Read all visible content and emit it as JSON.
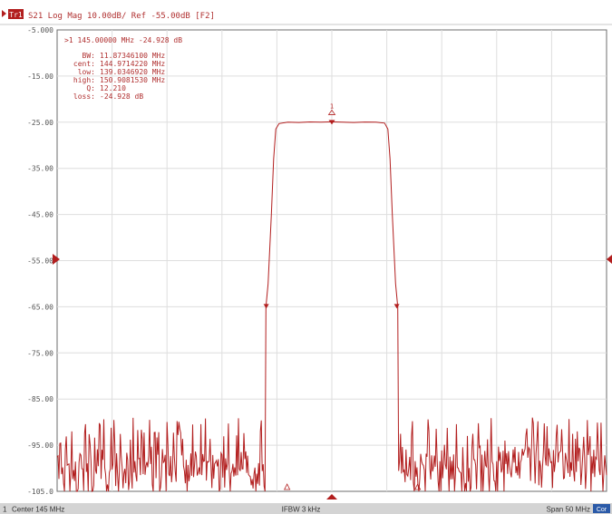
{
  "header": {
    "trace_badge": "Tr1",
    "trace_label": "S21 Log Mag 10.00dB/ Ref -55.00dB [F2]"
  },
  "marker_readout": {
    "marker": ">1  145.00000 MHz -24.928 dB",
    "bw_key": "BW:",
    "bw_value": "11.87346100 MHz",
    "cent_key": "cent:",
    "cent_value": "144.9714220 MHz",
    "low_key": "low:",
    "low_value": "139.0346920 MHz",
    "high_key": "high:",
    "high_value": "150.9081530 MHz",
    "q_key": "Q:",
    "q_value": "12.210",
    "loss_key": "loss:",
    "loss_value": "-24.928 dB"
  },
  "marker_flag": "1",
  "status_bar": {
    "channel": "1",
    "center": "Center 145 MHz",
    "ifbw": "IFBW 3 kHz",
    "span": "Span 50 MHz",
    "cor_badge": "Cor"
  },
  "colors": {
    "trace": "#b21e1e",
    "text": "#b03030",
    "axis_text": "#555555",
    "grid": "#dedede",
    "frame": "#6e6e6e",
    "status_bg": "#d4d4d4",
    "badge_bg": "#2b5aa8"
  },
  "chart_data": {
    "type": "line",
    "title": "S21 Log Mag 10.00dB/ Ref -55.00dB [F2]",
    "xlabel": "",
    "ylabel": "",
    "xlim_mhz": [
      120,
      170
    ],
    "ylim": [
      -105,
      -5
    ],
    "y_ticks": [
      -5,
      -15,
      -25,
      -35,
      -45,
      -55,
      -65,
      -75,
      -85,
      -95,
      -105
    ],
    "y_tick_labels": [
      "-5.000",
      "-15.00",
      "-25.00",
      "-35.00",
      "-45.00",
      "-55.00",
      "-65.00",
      "-75.00",
      "-85.00",
      "-95.00",
      "-105.0"
    ],
    "x_divisions": 10,
    "grid": true,
    "reference_level_db": -55,
    "passband_level_db": -25,
    "passband_points": [
      [
        139.0,
        -65
      ],
      [
        139.2,
        -60
      ],
      [
        139.5,
        -45
      ],
      [
        139.7,
        -33
      ],
      [
        139.9,
        -26.5
      ],
      [
        140.2,
        -25.3
      ],
      [
        141,
        -25.0
      ],
      [
        142,
        -25.05
      ],
      [
        143,
        -24.95
      ],
      [
        144,
        -25.0
      ],
      [
        145,
        -24.93
      ],
      [
        146,
        -25.0
      ],
      [
        147,
        -25.05
      ],
      [
        148,
        -24.97
      ],
      [
        149,
        -25.0
      ],
      [
        149.8,
        -25.2
      ],
      [
        150.1,
        -26.5
      ],
      [
        150.3,
        -33
      ],
      [
        150.5,
        -45
      ],
      [
        150.8,
        -60
      ],
      [
        151.0,
        -65
      ]
    ],
    "noise_floor_db_range": [
      -105,
      -85
    ],
    "markers": [
      {
        "id": "1",
        "freq_mhz": 145.0,
        "value_db": -24.928,
        "type": "active"
      },
      {
        "id": "low",
        "freq_mhz": 139.03,
        "value_db": -65,
        "type": "bandwidth"
      },
      {
        "id": "high",
        "freq_mhz": 150.91,
        "value_db": -65,
        "type": "bandwidth"
      }
    ]
  }
}
